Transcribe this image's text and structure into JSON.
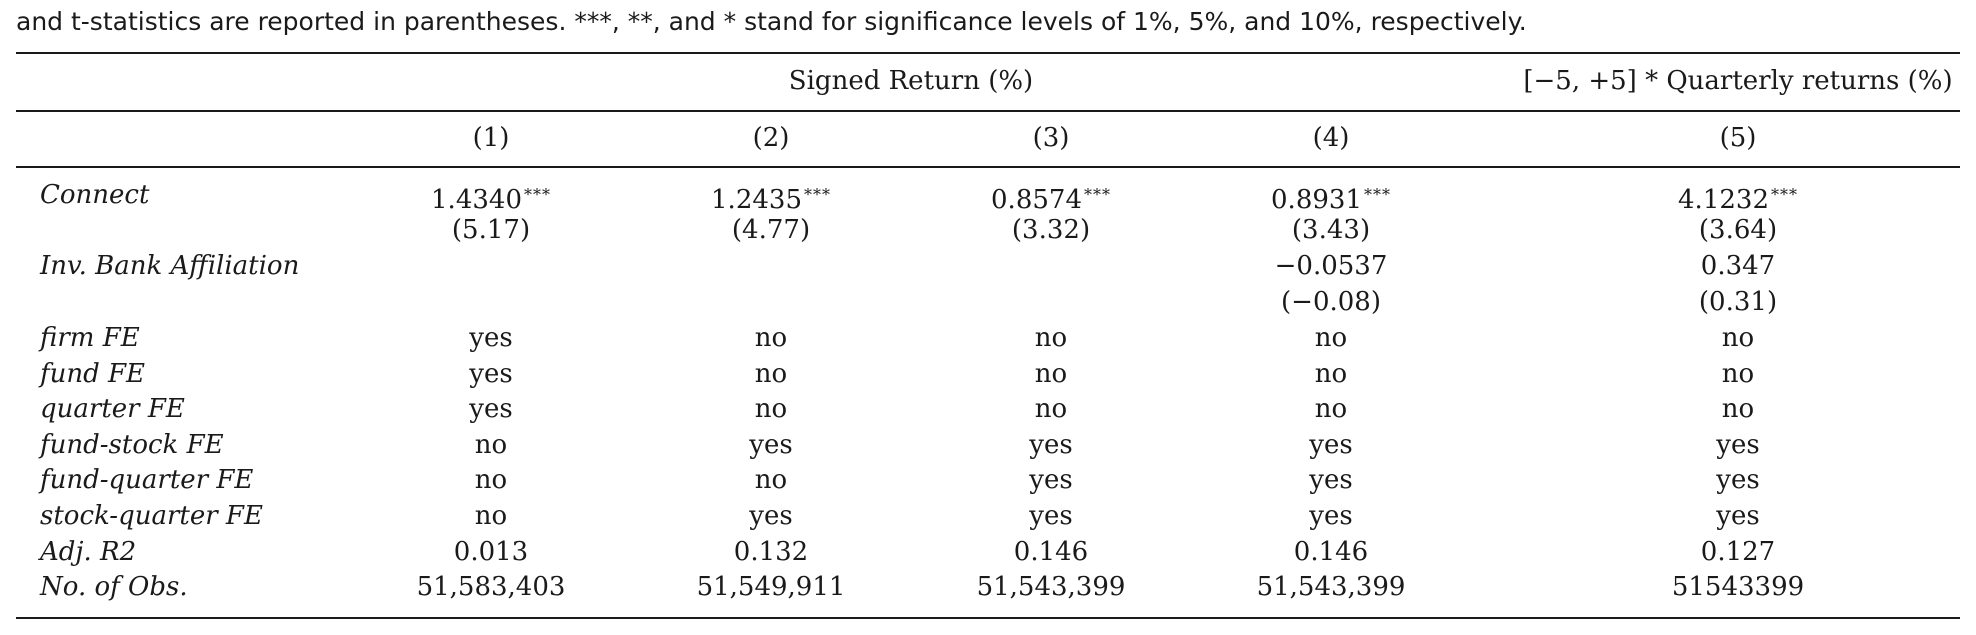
{
  "caption": {
    "line1": "",
    "line2": "and t-statistics are reported in parentheses. ***, **, and * stand for significance levels of 1%, 5%, and 10%, respectively."
  },
  "table": {
    "group_headers": [
      "Signed Return (%)",
      "[−5, +5] * Quarterly returns (%)"
    ],
    "columns": [
      "(1)",
      "(2)",
      "(3)",
      "(4)",
      "(5)"
    ],
    "connect": {
      "label": "Connect",
      "coefs": [
        "1.4340",
        "1.2435",
        "0.8574",
        "0.8931",
        "4.1232"
      ],
      "stars": [
        "***",
        "***",
        "***",
        "***",
        "***"
      ],
      "tstats": [
        "(5.17)",
        "(4.77)",
        "(3.32)",
        "(3.43)",
        "(3.64)"
      ]
    },
    "ib_affiliation": {
      "label": "Inv. Bank Affiliation",
      "coefs": [
        "",
        "",
        "",
        "−0.0537",
        "0.347"
      ],
      "tstats": [
        "",
        "",
        "",
        "(−0.08)",
        "(0.31)"
      ]
    },
    "rows": [
      {
        "label": "firm FE",
        "values": [
          "yes",
          "no",
          "no",
          "no",
          "no"
        ]
      },
      {
        "label": "fund FE",
        "values": [
          "yes",
          "no",
          "no",
          "no",
          "no"
        ]
      },
      {
        "label": "quarter FE",
        "values": [
          "yes",
          "no",
          "no",
          "no",
          "no"
        ]
      },
      {
        "label": "fund-stock FE",
        "values": [
          "no",
          "yes",
          "yes",
          "yes",
          "yes"
        ]
      },
      {
        "label": "fund-quarter FE",
        "values": [
          "no",
          "no",
          "yes",
          "yes",
          "yes"
        ]
      },
      {
        "label": "stock-quarter FE",
        "values": [
          "no",
          "yes",
          "yes",
          "yes",
          "yes"
        ]
      },
      {
        "label": "Adj. R2",
        "values": [
          "0.013",
          "0.132",
          "0.146",
          "0.146",
          "0.127"
        ]
      },
      {
        "label": "No. of Obs.",
        "values": [
          "51,583,403",
          "51,549,911",
          "51,543,399",
          "51,543,399",
          "51543399"
        ]
      }
    ]
  }
}
